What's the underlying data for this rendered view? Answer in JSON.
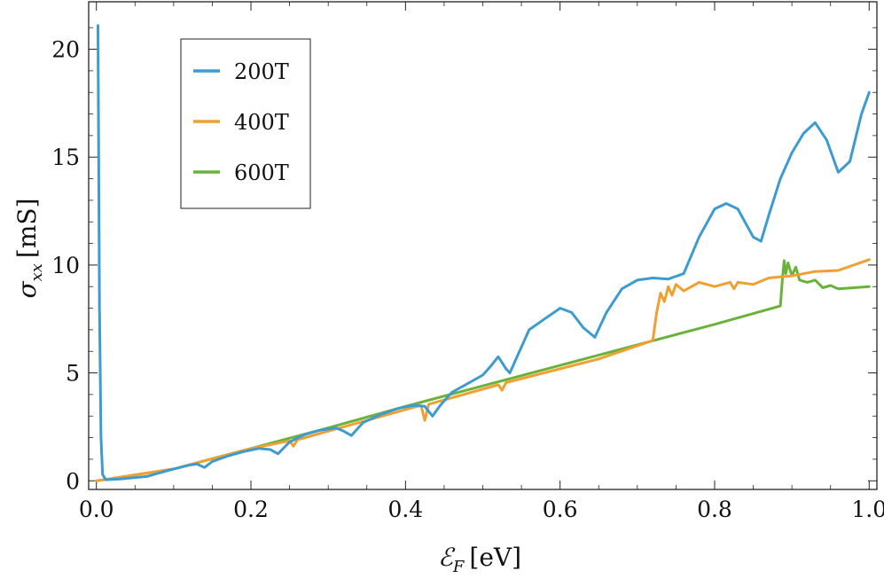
{
  "chart_data": {
    "type": "line",
    "xlabel": "ℰF [eV]",
    "ylabel": "σxx [mS]",
    "xlabel_parts": {
      "symbol": "ℰ",
      "subscript": "F",
      "unit": "[eV]"
    },
    "ylabel_parts": {
      "symbol": "σ",
      "subscript": "xx",
      "unit": "[mS]"
    },
    "xlim": [
      -0.01,
      1.01
    ],
    "ylim": [
      -0.4,
      22.2
    ],
    "x_ticks": [
      0.0,
      0.2,
      0.4,
      0.6,
      0.8,
      1.0
    ],
    "x_tick_labels": [
      "0.0",
      "0.2",
      "0.4",
      "0.6",
      "0.8",
      "1.0"
    ],
    "y_ticks": [
      0,
      5,
      10,
      15,
      20
    ],
    "y_tick_labels": [
      "0",
      "5",
      "10",
      "15",
      "20"
    ],
    "grid": false,
    "legend_position": "top-left",
    "series": [
      {
        "name": "200T",
        "color": "#3d9bd0",
        "points": [
          [
            0.002,
            21.1
          ],
          [
            0.003,
            15.0
          ],
          [
            0.004,
            8.0
          ],
          [
            0.006,
            2.0
          ],
          [
            0.008,
            0.3
          ],
          [
            0.012,
            0.05
          ],
          [
            0.03,
            0.08
          ],
          [
            0.05,
            0.15
          ],
          [
            0.065,
            0.2
          ],
          [
            0.08,
            0.35
          ],
          [
            0.1,
            0.55
          ],
          [
            0.12,
            0.72
          ],
          [
            0.13,
            0.78
          ],
          [
            0.14,
            0.62
          ],
          [
            0.15,
            0.9
          ],
          [
            0.17,
            1.15
          ],
          [
            0.19,
            1.35
          ],
          [
            0.21,
            1.5
          ],
          [
            0.225,
            1.45
          ],
          [
            0.235,
            1.25
          ],
          [
            0.25,
            1.8
          ],
          [
            0.27,
            2.15
          ],
          [
            0.29,
            2.35
          ],
          [
            0.31,
            2.45
          ],
          [
            0.32,
            2.3
          ],
          [
            0.33,
            2.1
          ],
          [
            0.345,
            2.7
          ],
          [
            0.37,
            3.1
          ],
          [
            0.39,
            3.35
          ],
          [
            0.41,
            3.5
          ],
          [
            0.425,
            3.45
          ],
          [
            0.435,
            3.0
          ],
          [
            0.445,
            3.5
          ],
          [
            0.46,
            4.1
          ],
          [
            0.48,
            4.5
          ],
          [
            0.5,
            4.9
          ],
          [
            0.51,
            5.3
          ],
          [
            0.52,
            5.75
          ],
          [
            0.53,
            5.2
          ],
          [
            0.535,
            5.0
          ],
          [
            0.545,
            5.8
          ],
          [
            0.56,
            7.0
          ],
          [
            0.58,
            7.5
          ],
          [
            0.6,
            8.0
          ],
          [
            0.615,
            7.8
          ],
          [
            0.63,
            7.1
          ],
          [
            0.645,
            6.65
          ],
          [
            0.66,
            7.8
          ],
          [
            0.68,
            8.9
          ],
          [
            0.7,
            9.3
          ],
          [
            0.72,
            9.4
          ],
          [
            0.74,
            9.35
          ],
          [
            0.76,
            9.6
          ],
          [
            0.78,
            11.3
          ],
          [
            0.8,
            12.6
          ],
          [
            0.815,
            12.85
          ],
          [
            0.83,
            12.6
          ],
          [
            0.85,
            11.3
          ],
          [
            0.86,
            11.1
          ],
          [
            0.87,
            12.3
          ],
          [
            0.885,
            14.0
          ],
          [
            0.9,
            15.2
          ],
          [
            0.915,
            16.1
          ],
          [
            0.93,
            16.6
          ],
          [
            0.945,
            15.8
          ],
          [
            0.96,
            14.3
          ],
          [
            0.975,
            14.8
          ],
          [
            0.99,
            17.0
          ],
          [
            1.0,
            18.0
          ]
        ]
      },
      {
        "name": "400T",
        "color": "#f0a030",
        "points": [
          [
            0.0,
            0.0
          ],
          [
            0.01,
            0.05
          ],
          [
            0.1,
            0.55
          ],
          [
            0.2,
            1.5
          ],
          [
            0.25,
            1.85
          ],
          [
            0.255,
            1.6
          ],
          [
            0.26,
            1.9
          ],
          [
            0.35,
            2.8
          ],
          [
            0.42,
            3.5
          ],
          [
            0.425,
            2.8
          ],
          [
            0.43,
            3.55
          ],
          [
            0.52,
            4.45
          ],
          [
            0.525,
            4.2
          ],
          [
            0.53,
            4.55
          ],
          [
            0.65,
            5.65
          ],
          [
            0.72,
            6.5
          ],
          [
            0.725,
            7.8
          ],
          [
            0.73,
            8.7
          ],
          [
            0.735,
            8.3
          ],
          [
            0.74,
            9.0
          ],
          [
            0.745,
            8.6
          ],
          [
            0.75,
            9.1
          ],
          [
            0.76,
            8.8
          ],
          [
            0.78,
            9.2
          ],
          [
            0.8,
            9.0
          ],
          [
            0.82,
            9.2
          ],
          [
            0.825,
            8.9
          ],
          [
            0.83,
            9.2
          ],
          [
            0.85,
            9.1
          ],
          [
            0.87,
            9.4
          ],
          [
            0.9,
            9.5
          ],
          [
            0.93,
            9.7
          ],
          [
            0.96,
            9.75
          ],
          [
            1.0,
            10.25
          ]
        ]
      },
      {
        "name": "600T",
        "color": "#6ab23a",
        "points": [
          [
            0.0,
            0.0
          ],
          [
            0.01,
            0.05
          ],
          [
            0.1,
            0.55
          ],
          [
            0.2,
            1.5
          ],
          [
            0.3,
            2.45
          ],
          [
            0.4,
            3.45
          ],
          [
            0.5,
            4.4
          ],
          [
            0.6,
            5.35
          ],
          [
            0.7,
            6.3
          ],
          [
            0.8,
            7.25
          ],
          [
            0.885,
            8.1
          ],
          [
            0.888,
            9.5
          ],
          [
            0.89,
            10.2
          ],
          [
            0.892,
            9.6
          ],
          [
            0.895,
            10.1
          ],
          [
            0.9,
            9.5
          ],
          [
            0.905,
            9.9
          ],
          [
            0.91,
            9.3
          ],
          [
            0.92,
            9.2
          ],
          [
            0.93,
            9.3
          ],
          [
            0.94,
            8.95
          ],
          [
            0.95,
            9.05
          ],
          [
            0.96,
            8.9
          ],
          [
            0.98,
            8.95
          ],
          [
            1.0,
            9.0
          ]
        ]
      }
    ]
  }
}
